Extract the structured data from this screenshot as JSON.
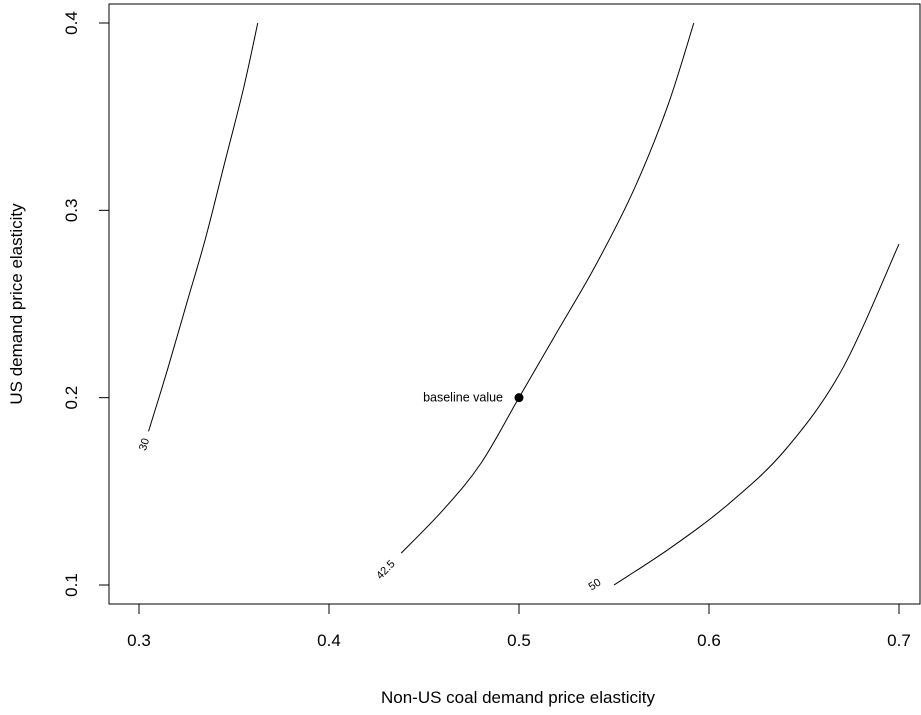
{
  "chart_data": {
    "type": "contour",
    "title": "",
    "xlabel": "Non-US coal demand price elasticity",
    "ylabel": "US demand price elasticity",
    "xlim": [
      0.3,
      0.7
    ],
    "ylim": [
      0.1,
      0.4
    ],
    "x_ticks": [
      "0.3",
      "0.4",
      "0.5",
      "0.6",
      "0.7"
    ],
    "y_ticks": [
      "0.1",
      "0.2",
      "0.3",
      "0.4"
    ],
    "grid": false,
    "line_color": "#000000",
    "contours": [
      {
        "label": "30",
        "label_at": [
          0.303,
          0.175
        ],
        "points": [
          [
            0.305,
            0.182
          ],
          [
            0.315,
            0.215
          ],
          [
            0.325,
            0.25
          ],
          [
            0.335,
            0.285
          ],
          [
            0.345,
            0.325
          ],
          [
            0.355,
            0.365
          ],
          [
            0.3625,
            0.4
          ]
        ]
      },
      {
        "label": "42.5",
        "label_at": [
          0.43,
          0.108
        ],
        "points": [
          [
            0.438,
            0.117
          ],
          [
            0.46,
            0.14
          ],
          [
            0.48,
            0.165
          ],
          [
            0.5,
            0.2
          ],
          [
            0.52,
            0.235
          ],
          [
            0.54,
            0.27
          ],
          [
            0.56,
            0.31
          ],
          [
            0.578,
            0.355
          ],
          [
            0.592,
            0.4
          ]
        ]
      },
      {
        "label": "50",
        "label_at": [
          0.54,
          0.1
        ],
        "points": [
          [
            0.55,
            0.1
          ],
          [
            0.58,
            0.12
          ],
          [
            0.61,
            0.143
          ],
          [
            0.64,
            0.172
          ],
          [
            0.67,
            0.215
          ],
          [
            0.7,
            0.282
          ]
        ]
      }
    ],
    "points": [
      {
        "x": 0.5,
        "y": 0.2,
        "label": "baseline value"
      }
    ]
  }
}
